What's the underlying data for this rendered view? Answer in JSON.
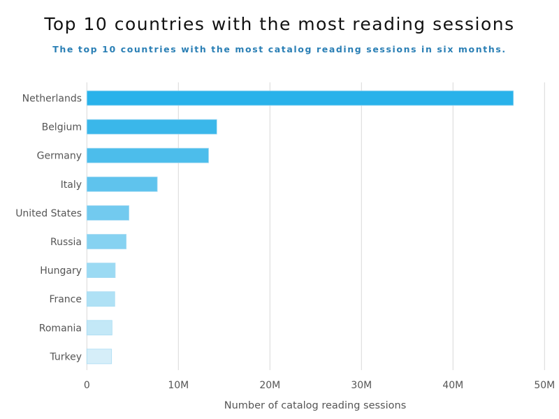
{
  "chart_data": {
    "type": "bar",
    "orientation": "horizontal",
    "title": "Top 10 countries with the most reading sessions",
    "subtitle": "The top 10 countries with the most catalog reading sessions in six months.",
    "xlabel": "Number of catalog reading sessions",
    "ylabel": "",
    "categories": [
      "Netherlands",
      "Belgium",
      "Germany",
      "Italy",
      "United States",
      "Russia",
      "Hungary",
      "France",
      "Romania",
      "Turkey"
    ],
    "values": [
      46600000,
      14200000,
      13300000,
      7700000,
      4600000,
      4300000,
      3100000,
      3050000,
      2750000,
      2700000
    ],
    "xlim": [
      0,
      50000000
    ],
    "xticks": [
      0,
      10000000,
      20000000,
      30000000,
      40000000,
      50000000
    ],
    "xtick_labels": [
      "0",
      "10M",
      "20M",
      "30M",
      "40M",
      "50M"
    ],
    "grid": "vertical",
    "colors": [
      "#29b2ea",
      "#3ab7ea",
      "#4cbdeb",
      "#5fc3ed",
      "#72caef",
      "#86d2f1",
      "#9bdaf3",
      "#afe1f5",
      "#c3e8f7",
      "#d6eef9"
    ]
  }
}
